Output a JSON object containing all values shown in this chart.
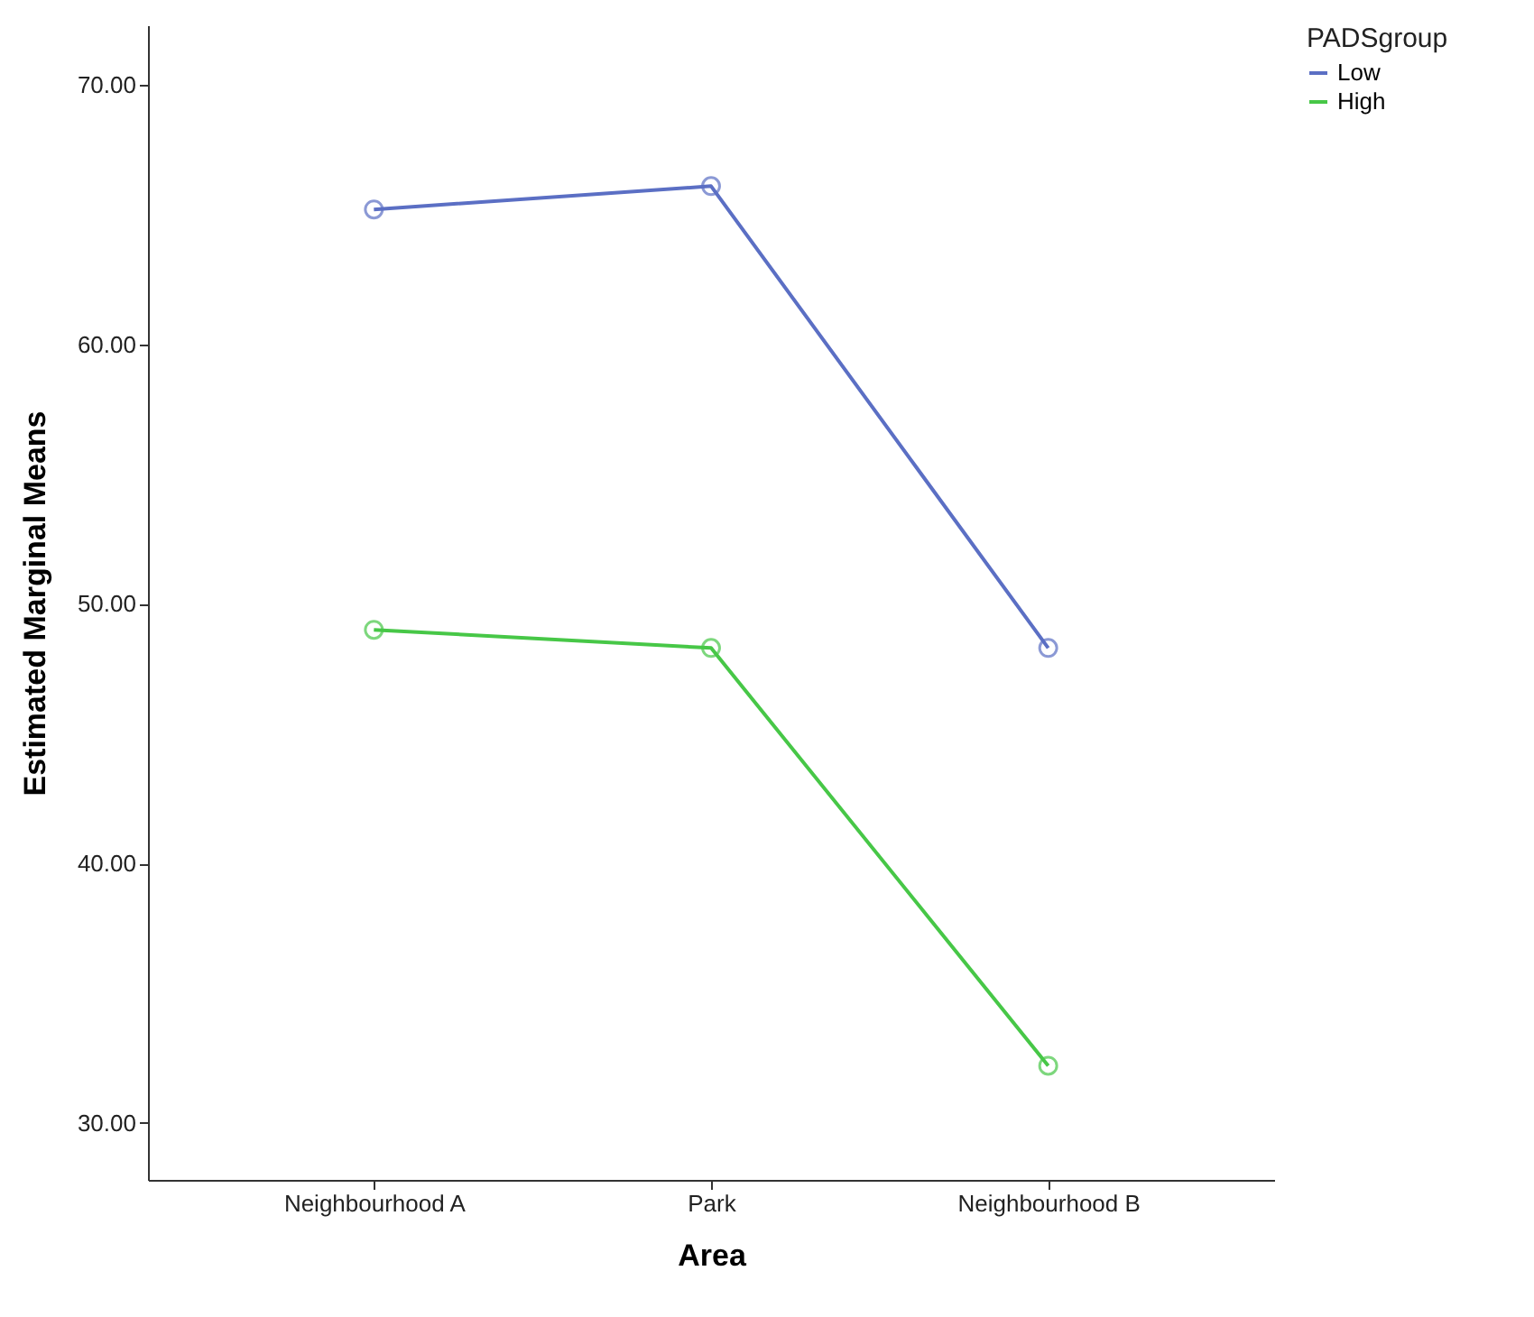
{
  "chart_data": {
    "type": "line",
    "xlabel": "Area",
    "ylabel": "Estimated Marginal Means",
    "legend_title": "PADSgroup",
    "categories": [
      "Neighbourhood A",
      "Park",
      "Neighbourhood B"
    ],
    "series": [
      {
        "name": "Low",
        "color": "#5b6fc4",
        "values": [
          65.2,
          66.1,
          48.3
        ]
      },
      {
        "name": "High",
        "color": "#47c747",
        "values": [
          49.0,
          48.3,
          32.2
        ]
      }
    ],
    "ylim": [
      27.8,
      72.3
    ],
    "yticks": [
      {
        "value": 30,
        "label": "30.00"
      },
      {
        "value": 40,
        "label": "40.00"
      },
      {
        "value": 50,
        "label": "50.00"
      },
      {
        "value": 60,
        "label": "60.00"
      },
      {
        "value": 70,
        "label": "70.00"
      }
    ],
    "grid": false,
    "legend": "top right",
    "marker": "circle",
    "line_style": "solid"
  }
}
